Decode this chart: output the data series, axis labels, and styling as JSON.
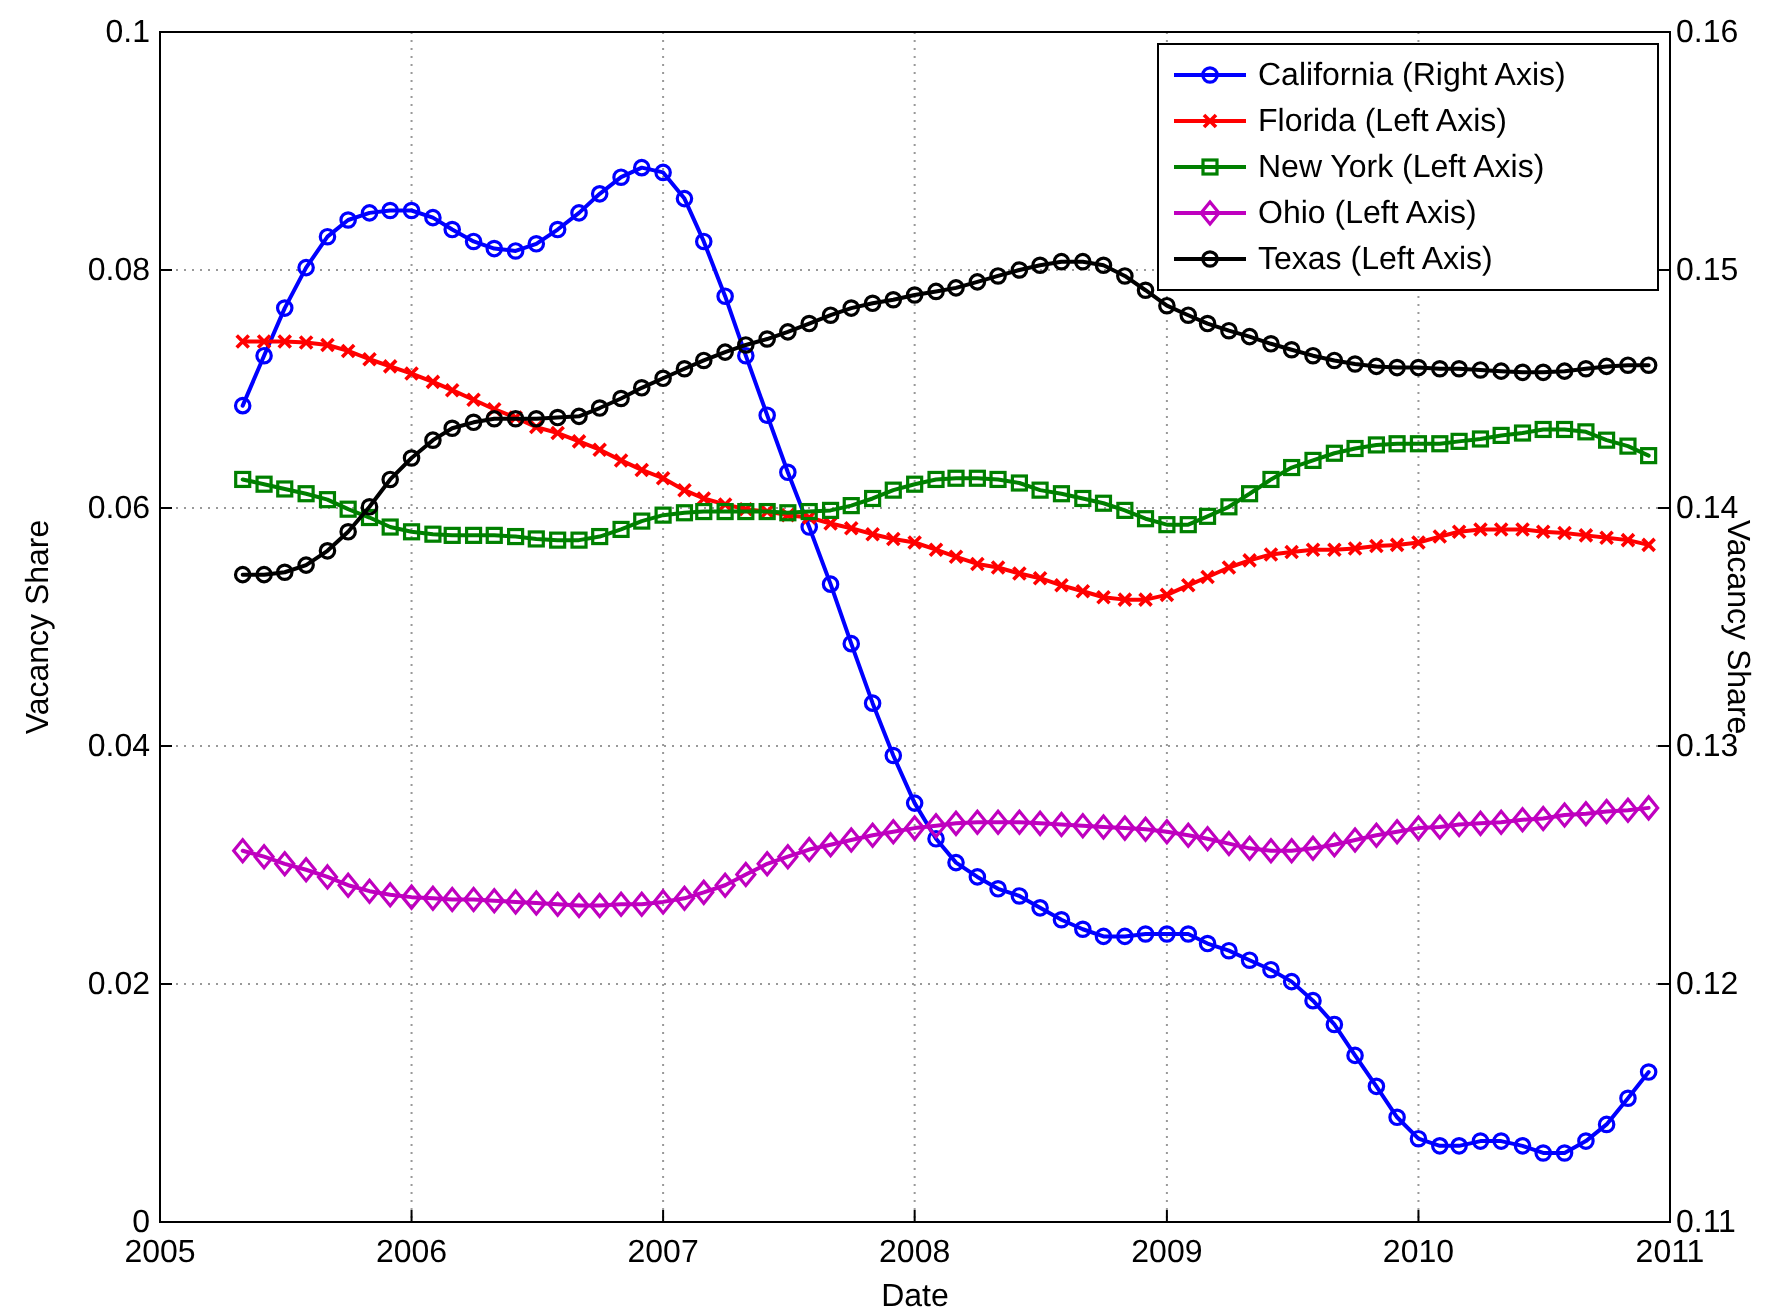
{
  "chart_data": {
    "type": "line",
    "xlabel": "Date",
    "ylabel": "Vacancy Share",
    "y2label": "Vacancy Share",
    "x": [
      "2005-05",
      "2005-06",
      "2005-07",
      "2005-08",
      "2005-09",
      "2005-10",
      "2005-11",
      "2005-12",
      "2006-01",
      "2006-02",
      "2006-03",
      "2006-04",
      "2006-05",
      "2006-06",
      "2006-07",
      "2006-08",
      "2006-09",
      "2006-10",
      "2006-11",
      "2006-12",
      "2007-01",
      "2007-02",
      "2007-03",
      "2007-04",
      "2007-05",
      "2007-06",
      "2007-07",
      "2007-08",
      "2007-09",
      "2007-10",
      "2007-11",
      "2007-12",
      "2008-01",
      "2008-02",
      "2008-03",
      "2008-04",
      "2008-05",
      "2008-06",
      "2008-07",
      "2008-08",
      "2008-09",
      "2008-10",
      "2008-11",
      "2008-12",
      "2009-01",
      "2009-02",
      "2009-03",
      "2009-04",
      "2009-05",
      "2009-06",
      "2009-07",
      "2009-08",
      "2009-09",
      "2009-10",
      "2009-11",
      "2009-12",
      "2010-01",
      "2010-02",
      "2010-03",
      "2010-04",
      "2010-05",
      "2010-06",
      "2010-07",
      "2010-08",
      "2010-09",
      "2010-10",
      "2010-11",
      "2010-12"
    ],
    "xlim": [
      "2005",
      "2011"
    ],
    "xticks": [
      "2005",
      "2006",
      "2007",
      "2008",
      "2009",
      "2010",
      "2011"
    ],
    "ylim": [
      0,
      0.1
    ],
    "yticks": [
      0,
      0.02,
      0.04,
      0.06,
      0.08,
      0.1
    ],
    "y2lim": [
      0.11,
      0.16
    ],
    "y2ticks": [
      0.11,
      0.12,
      0.13,
      0.14,
      0.15,
      0.16
    ],
    "grid": true,
    "legend": "top right",
    "line_style": "solid",
    "series": [
      {
        "name": "California (Right Axis)",
        "color": "#0000ff",
        "axis": "y2",
        "marker": "circle",
        "values": [
          0.1443,
          0.1464,
          0.1484,
          0.1501,
          0.1514,
          0.1521,
          0.1524,
          0.1525,
          0.1525,
          0.1522,
          0.1517,
          0.1512,
          0.1509,
          0.1508,
          0.1511,
          0.1517,
          0.1524,
          0.1532,
          0.1539,
          0.1543,
          0.1541,
          0.153,
          0.1512,
          0.1489,
          0.1464,
          0.1439,
          0.1415,
          0.1392,
          0.1368,
          0.1343,
          0.1318,
          0.1296,
          0.1276,
          0.1261,
          0.1251,
          0.1245,
          0.124,
          0.1237,
          0.1232,
          0.1227,
          0.1223,
          0.122,
          0.122,
          0.1221,
          0.1221,
          0.1221,
          0.1217,
          0.1214,
          0.121,
          0.1206,
          0.1201,
          0.1193,
          0.1183,
          0.117,
          0.1157,
          0.1144,
          0.1135,
          0.1132,
          0.1132,
          0.1134,
          0.1134,
          0.1132,
          0.1129,
          0.1129,
          0.1134,
          0.1141,
          0.1152,
          0.1163
        ]
      },
      {
        "name": "Florida (Left Axis)",
        "color": "#ff0000",
        "marker": "cross",
        "values": [
          0.074,
          0.074,
          0.074,
          0.0739,
          0.0737,
          0.0732,
          0.0725,
          0.0719,
          0.0713,
          0.0706,
          0.0699,
          0.0691,
          0.0683,
          0.0676,
          0.0668,
          0.0663,
          0.0656,
          0.0649,
          0.064,
          0.0632,
          0.0625,
          0.0615,
          0.0608,
          0.0603,
          0.0599,
          0.0597,
          0.0594,
          0.0592,
          0.0587,
          0.0583,
          0.0578,
          0.0574,
          0.0571,
          0.0565,
          0.0559,
          0.0553,
          0.055,
          0.0545,
          0.0541,
          0.0535,
          0.053,
          0.0525,
          0.0523,
          0.0523,
          0.0527,
          0.0535,
          0.0542,
          0.055,
          0.0556,
          0.0561,
          0.0563,
          0.0565,
          0.0565,
          0.0566,
          0.0568,
          0.0569,
          0.0571,
          0.0576,
          0.058,
          0.0582,
          0.0582,
          0.0582,
          0.058,
          0.0579,
          0.0577,
          0.0575,
          0.0573,
          0.0569
        ]
      },
      {
        "name": "New York (Left Axis)",
        "color": "#008000",
        "marker": "square",
        "values": [
          0.0624,
          0.062,
          0.0616,
          0.0612,
          0.0607,
          0.0599,
          0.0592,
          0.0584,
          0.058,
          0.0578,
          0.0577,
          0.0577,
          0.0577,
          0.0576,
          0.0574,
          0.0573,
          0.0573,
          0.0576,
          0.0582,
          0.0589,
          0.0594,
          0.0596,
          0.0597,
          0.0597,
          0.0597,
          0.0597,
          0.0596,
          0.0597,
          0.0598,
          0.0602,
          0.0608,
          0.0615,
          0.062,
          0.0624,
          0.0625,
          0.0625,
          0.0624,
          0.0621,
          0.0615,
          0.0612,
          0.0608,
          0.0604,
          0.0598,
          0.0591,
          0.0586,
          0.0586,
          0.0593,
          0.0601,
          0.0612,
          0.0624,
          0.0634,
          0.064,
          0.0646,
          0.065,
          0.0653,
          0.0654,
          0.0654,
          0.0654,
          0.0656,
          0.0658,
          0.0661,
          0.0663,
          0.0666,
          0.0666,
          0.0664,
          0.0657,
          0.0652,
          0.0644
        ]
      },
      {
        "name": "Ohio (Left Axis)",
        "color": "#bf00bf",
        "marker": "diamond",
        "values": [
          0.0312,
          0.0307,
          0.0301,
          0.0296,
          0.029,
          0.0283,
          0.0278,
          0.0275,
          0.0273,
          0.0272,
          0.0271,
          0.0271,
          0.027,
          0.0269,
          0.0268,
          0.0267,
          0.0266,
          0.0266,
          0.0267,
          0.0267,
          0.0269,
          0.0272,
          0.0277,
          0.0283,
          0.0292,
          0.0301,
          0.0307,
          0.0313,
          0.0317,
          0.0321,
          0.0325,
          0.0328,
          0.0331,
          0.0333,
          0.0335,
          0.0336,
          0.0336,
          0.0336,
          0.0335,
          0.0334,
          0.0333,
          0.0332,
          0.0331,
          0.033,
          0.0328,
          0.0325,
          0.0322,
          0.0318,
          0.0314,
          0.0312,
          0.0312,
          0.0314,
          0.0317,
          0.0321,
          0.0325,
          0.0328,
          0.0331,
          0.0332,
          0.0334,
          0.0335,
          0.0336,
          0.0338,
          0.0339,
          0.0342,
          0.0343,
          0.0345,
          0.0346,
          0.0348
        ]
      },
      {
        "name": "Texas (Left Axis)",
        "color": "#000000",
        "marker": "circle",
        "values": [
          0.0544,
          0.0544,
          0.0546,
          0.0552,
          0.0564,
          0.058,
          0.0601,
          0.0624,
          0.0642,
          0.0657,
          0.0667,
          0.0672,
          0.0675,
          0.0675,
          0.0675,
          0.0676,
          0.0677,
          0.0684,
          0.0692,
          0.0701,
          0.0709,
          0.0717,
          0.0724,
          0.0731,
          0.0737,
          0.0742,
          0.0748,
          0.0755,
          0.0762,
          0.0768,
          0.0772,
          0.0775,
          0.0779,
          0.0782,
          0.0785,
          0.079,
          0.0795,
          0.08,
          0.0804,
          0.0807,
          0.0807,
          0.0804,
          0.0795,
          0.0783,
          0.077,
          0.0762,
          0.0755,
          0.0749,
          0.0744,
          0.0738,
          0.0733,
          0.0728,
          0.0724,
          0.0721,
          0.0719,
          0.0718,
          0.0718,
          0.0717,
          0.0717,
          0.0716,
          0.0715,
          0.0714,
          0.0714,
          0.0715,
          0.0717,
          0.0719,
          0.072,
          0.072
        ]
      }
    ]
  }
}
